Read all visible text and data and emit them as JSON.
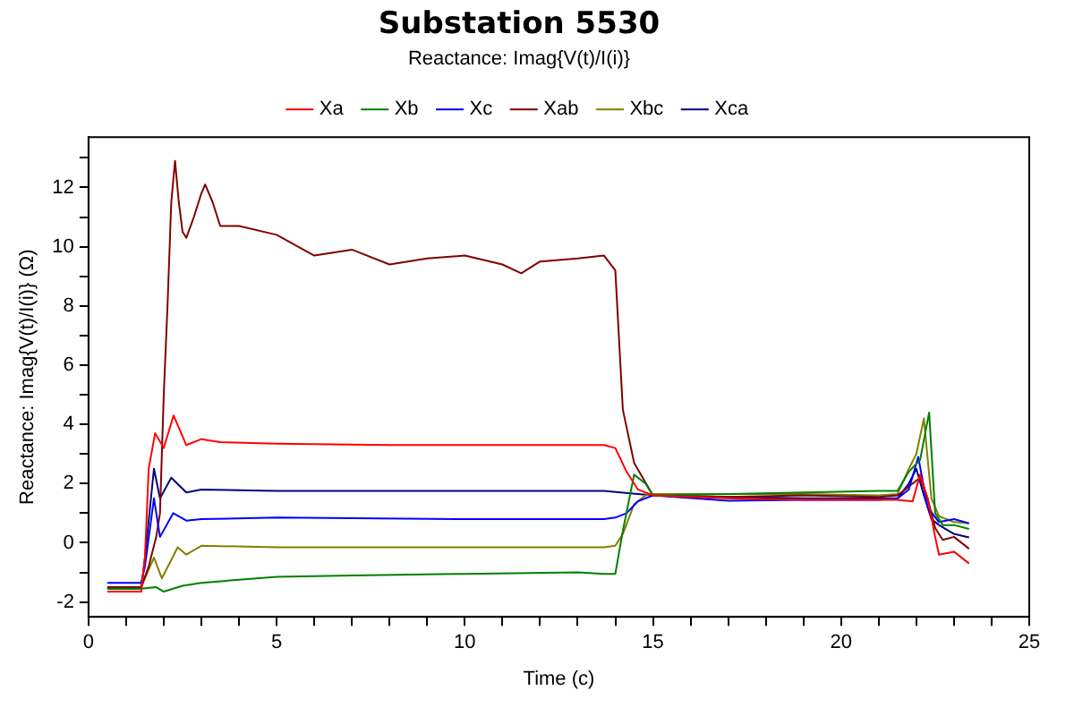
{
  "chart_data": {
    "type": "line",
    "title": "Substation 5530",
    "subtitle": "Reactance: Imag{V(t)/I(i)}",
    "xlabel": "Time (c)",
    "ylabel": "Reactance: Imag{V(t)/I(i)} (Ω)",
    "xlim": [
      0,
      25
    ],
    "ylim": [
      -2.5,
      13.7
    ],
    "xticks": [
      0,
      {
        "value": 1,
        "label": null
      },
      {
        "value": 2,
        "label": null
      },
      {
        "value": 3,
        "label": null
      },
      {
        "value": 4,
        "label": null
      },
      5,
      {
        "value": 6,
        "label": null
      },
      {
        "value": 7,
        "label": null
      },
      {
        "value": 8,
        "label": null
      },
      {
        "value": 9,
        "label": null
      },
      10,
      {
        "value": 11,
        "label": null
      },
      {
        "value": 12,
        "label": null
      },
      {
        "value": 13,
        "label": null
      },
      {
        "value": 14,
        "label": null
      },
      15,
      {
        "value": 16,
        "label": null
      },
      {
        "value": 17,
        "label": null
      },
      {
        "value": 18,
        "label": null
      },
      {
        "value": 19,
        "label": null
      },
      20,
      {
        "value": 21,
        "label": null
      },
      {
        "value": 22,
        "label": null
      },
      {
        "value": 23,
        "label": null
      },
      {
        "value": 24,
        "label": null
      },
      25
    ],
    "yticks": [
      -2,
      {
        "value": -1,
        "label": null
      },
      0,
      {
        "value": 1,
        "label": null
      },
      2,
      {
        "value": 3,
        "label": null
      },
      4,
      {
        "value": 5,
        "label": null
      },
      6,
      {
        "value": 7,
        "label": null
      },
      8,
      {
        "value": 9,
        "label": null
      },
      10,
      {
        "value": 11,
        "label": null
      },
      12,
      {
        "value": 13,
        "label": null
      }
    ],
    "grid": false,
    "legend": "top",
    "marker": "none",
    "line_style": "solid",
    "series": [
      {
        "name": "Xa",
        "color": "#ff0000",
        "x": [
          0.5,
          1.4,
          1.5,
          1.6,
          1.77,
          2.0,
          2.26,
          2.6,
          3.0,
          3.5,
          5,
          8,
          10,
          12,
          13.7,
          14.0,
          14.3,
          14.6,
          15,
          17,
          19,
          21,
          21.5,
          21.9,
          22.1,
          22.3,
          22.5,
          22.6,
          23,
          23.4
        ],
        "values": [
          -1.65,
          -1.65,
          -0.5,
          2.5,
          3.7,
          3.2,
          4.3,
          3.3,
          3.5,
          3.4,
          3.35,
          3.3,
          3.3,
          3.3,
          3.3,
          3.2,
          2.4,
          1.8,
          1.6,
          1.5,
          1.45,
          1.45,
          1.45,
          1.4,
          2.3,
          1.5,
          0.2,
          -0.4,
          -0.3,
          -0.7
        ]
      },
      {
        "name": "Xb",
        "color": "#008000",
        "x": [
          0.5,
          1.4,
          1.8,
          2.0,
          2.5,
          3.0,
          4,
          5,
          7,
          10,
          13,
          13.7,
          14.0,
          14.2,
          14.5,
          14.8,
          15,
          17,
          19,
          21,
          21.5,
          21.8,
          22.1,
          22.34,
          22.5,
          22.7,
          23,
          23.4
        ],
        "values": [
          -1.55,
          -1.55,
          -1.5,
          -1.65,
          -1.45,
          -1.35,
          -1.25,
          -1.15,
          -1.1,
          -1.05,
          -1.0,
          -1.05,
          -1.05,
          0.4,
          2.3,
          2.0,
          1.6,
          1.65,
          1.7,
          1.75,
          1.75,
          2.4,
          2.8,
          4.4,
          1.0,
          0.6,
          0.6,
          0.47
        ]
      },
      {
        "name": "Xc",
        "color": "#0000ff",
        "x": [
          0.5,
          1.4,
          1.5,
          1.74,
          1.9,
          2.25,
          2.6,
          3,
          5,
          10,
          13.7,
          14.0,
          14.3,
          14.6,
          15,
          17,
          19,
          21,
          21.5,
          21.8,
          22.05,
          22.3,
          22.6,
          23,
          23.4
        ],
        "values": [
          -1.35,
          -1.35,
          -0.8,
          1.5,
          0.2,
          1.0,
          0.75,
          0.8,
          0.85,
          0.8,
          0.8,
          0.85,
          1.0,
          1.4,
          1.6,
          1.42,
          1.45,
          1.45,
          1.5,
          1.8,
          2.9,
          1.2,
          0.7,
          0.8,
          0.66
        ]
      },
      {
        "name": "Xab",
        "color": "#800000",
        "x": [
          0.5,
          1.4,
          1.6,
          1.8,
          1.9,
          2.0,
          2.1,
          2.2,
          2.3,
          2.4,
          2.5,
          2.6,
          2.8,
          3.0,
          3.1,
          3.3,
          3.5,
          4,
          5,
          6,
          7,
          8,
          9,
          10,
          11,
          11.5,
          12,
          13,
          13.7,
          14.0,
          14.2,
          14.5,
          15,
          17,
          19,
          21,
          21.5,
          21.9,
          22.1,
          22.3,
          22.5,
          22.7,
          23,
          23.4
        ],
        "values": [
          -1.5,
          -1.5,
          -0.8,
          0.2,
          1.0,
          5.0,
          8.0,
          11.5,
          12.9,
          11.5,
          10.5,
          10.3,
          11.0,
          11.8,
          12.1,
          11.5,
          10.7,
          10.7,
          10.4,
          9.7,
          9.9,
          9.4,
          9.6,
          9.7,
          9.4,
          9.1,
          9.5,
          9.6,
          9.7,
          9.2,
          4.5,
          2.7,
          1.6,
          1.55,
          1.6,
          1.55,
          1.6,
          2.0,
          2.2,
          1.5,
          0.5,
          0.1,
          0.2,
          -0.2
        ]
      },
      {
        "name": "Xbc",
        "color": "#808000",
        "x": [
          0.5,
          1.4,
          1.5,
          1.74,
          1.95,
          2.37,
          2.6,
          3,
          5,
          10,
          13.7,
          14.0,
          14.2,
          14.5,
          14.8,
          15,
          17,
          19,
          21,
          21.5,
          21.8,
          22.0,
          22.2,
          22.4,
          22.6,
          23,
          23.4
        ],
        "values": [
          -1.5,
          -1.5,
          -1.2,
          -0.5,
          -1.2,
          -0.15,
          -0.4,
          -0.1,
          -0.15,
          -0.15,
          -0.15,
          -0.1,
          0.3,
          1.3,
          1.6,
          1.65,
          1.65,
          1.65,
          1.6,
          1.65,
          2.5,
          3.0,
          4.2,
          1.5,
          0.9,
          0.7,
          0.66
        ]
      },
      {
        "name": "Xca",
        "color": "#000080",
        "x": [
          0.5,
          1.4,
          1.5,
          1.74,
          1.9,
          2.2,
          2.6,
          3,
          5,
          10,
          13.7,
          14.6,
          15,
          17,
          19,
          21,
          21.5,
          21.8,
          22.0,
          22.2,
          22.4,
          22.6,
          23,
          23.4
        ],
        "values": [
          -1.55,
          -1.55,
          -0.5,
          2.5,
          1.5,
          2.2,
          1.7,
          1.8,
          1.75,
          1.75,
          1.75,
          1.65,
          1.6,
          1.55,
          1.5,
          1.5,
          1.5,
          2.0,
          2.5,
          1.6,
          0.8,
          0.6,
          0.3,
          0.18
        ]
      }
    ]
  }
}
